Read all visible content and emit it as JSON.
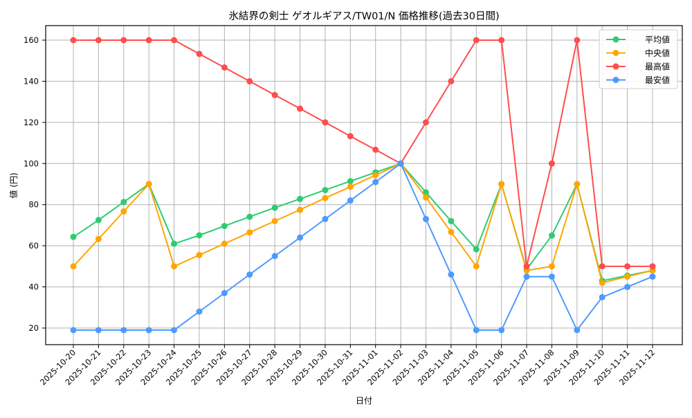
{
  "chart_data": {
    "type": "line",
    "title": "氷結界の剣士 ゲオルギアス/TW01/N 価格推移(過去30日間)",
    "xlabel": "日付",
    "ylabel": "値 (円)",
    "ylim": [
      12,
      167
    ],
    "yticks": [
      20,
      40,
      60,
      80,
      100,
      120,
      140,
      160
    ],
    "grid": true,
    "legend_position": "upper right",
    "categories": [
      "2025-10-20",
      "2025-10-21",
      "2025-10-22",
      "2025-10-23",
      "2025-10-24",
      "2025-10-25",
      "2025-10-26",
      "2025-10-27",
      "2025-10-28",
      "2025-10-29",
      "2025-10-30",
      "2025-10-31",
      "2025-11-01",
      "2025-11-02",
      "2025-11-03",
      "2025-11-04",
      "2025-11-05",
      "2025-11-06",
      "2025-11-07",
      "2025-11-08",
      "2025-11-09",
      "2025-11-10",
      "2025-11-11",
      "2025-11-12"
    ],
    "series": [
      {
        "name": "平均値",
        "color": "#2ecc71",
        "values": [
          64.3,
          72.5,
          81.3,
          90,
          61,
          65.1,
          69.6,
          74.1,
          78.5,
          82.8,
          87.1,
          91.4,
          95.7,
          100,
          86,
          72,
          58.3,
          90,
          48.5,
          65,
          90,
          43,
          45.5,
          48
        ]
      },
      {
        "name": "中央値",
        "color": "#ffa500",
        "values": [
          50,
          63.3,
          76.7,
          90,
          50,
          55.5,
          61,
          66.5,
          72,
          77.5,
          83.2,
          88.7,
          94.3,
          100,
          83.5,
          66.7,
          50,
          90,
          48,
          50,
          90,
          42,
          45,
          48
        ]
      },
      {
        "name": "最高値",
        "color": "#ff4d4d",
        "values": [
          160,
          160,
          160,
          160,
          160,
          153.3,
          146.7,
          140,
          133.3,
          126.7,
          120,
          113.3,
          106.7,
          100,
          120,
          140,
          160,
          160,
          50,
          100,
          160,
          50,
          50,
          50
        ]
      },
      {
        "name": "最安値",
        "color": "#4d9aff",
        "values": [
          19,
          19,
          19,
          19,
          19,
          28,
          37,
          46,
          55,
          64,
          73,
          82,
          91,
          100,
          73,
          46,
          19,
          19,
          45,
          45,
          19,
          35,
          40,
          45
        ]
      }
    ]
  }
}
